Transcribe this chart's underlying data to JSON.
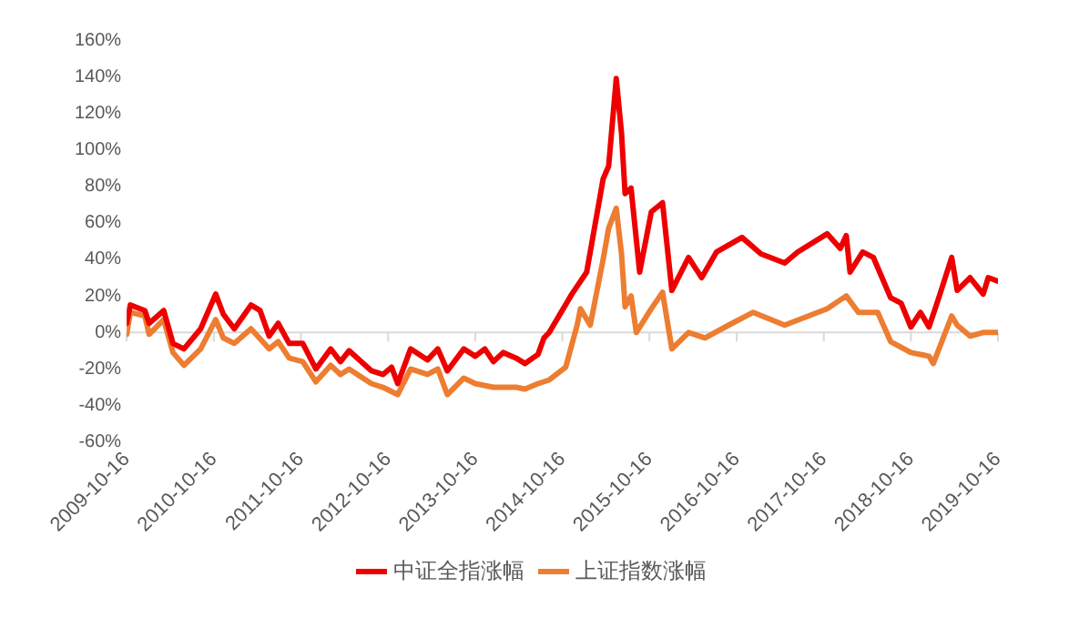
{
  "chart_data": {
    "type": "line",
    "xlim": [
      "2009-10-16",
      "2019-10-16"
    ],
    "xticks": [
      "2009-10-16",
      "2010-10-16",
      "2011-10-16",
      "2012-10-16",
      "2013-10-16",
      "2014-10-16",
      "2015-10-16",
      "2016-10-16",
      "2017-10-16",
      "2018-10-16",
      "2019-10-16"
    ],
    "ylim": [
      -60,
      160
    ],
    "yticks": [
      {
        "value": -60,
        "label": "-60%"
      },
      {
        "value": -40,
        "label": "-40%"
      },
      {
        "value": -20,
        "label": "-20%"
      },
      {
        "value": 0,
        "label": "0%"
      },
      {
        "value": 20,
        "label": "20%"
      },
      {
        "value": 40,
        "label": "40%"
      },
      {
        "value": 60,
        "label": "60%"
      },
      {
        "value": 80,
        "label": "80%"
      },
      {
        "value": 100,
        "label": "100%"
      },
      {
        "value": 120,
        "label": "120%"
      },
      {
        "value": 140,
        "label": "140%"
      },
      {
        "value": 160,
        "label": "160%"
      }
    ],
    "grid": false,
    "ref_lines": [
      {
        "axis": "y",
        "value": 0,
        "color": "#d9d9d9"
      }
    ],
    "legend": "bottom",
    "marker": "none",
    "line_style": "solid",
    "series": [
      {
        "name": "中证全指涨幅",
        "color": "#ee0000",
        "x": [
          "2009-10-16",
          "2009-10-31",
          "2009-12-31",
          "2010-01-18",
          "2010-03-20",
          "2010-04-28",
          "2010-06-13",
          "2010-08-22",
          "2010-10-24",
          "2010-11-25",
          "2011-01-10",
          "2011-03-21",
          "2011-04-28",
          "2011-06-05",
          "2011-07-13",
          "2011-08-28",
          "2011-10-24",
          "2011-12-18",
          "2012-02-18",
          "2012-03-30",
          "2012-05-05",
          "2012-08-07",
          "2012-09-24",
          "2012-10-30",
          "2012-11-25",
          "2013-01-18",
          "2013-03-30",
          "2013-05-12",
          "2013-06-21",
          "2013-08-29",
          "2013-10-16",
          "2013-11-25",
          "2013-12-31",
          "2014-02-10",
          "2014-04-05",
          "2014-05-12",
          "2014-07-06",
          "2014-07-31",
          "2014-08-22",
          "2014-11-25",
          "2015-01-26",
          "2015-04-05",
          "2015-04-28",
          "2015-05-30",
          "2015-06-21",
          "2015-07-06",
          "2015-07-31",
          "2015-09-05",
          "2015-10-24",
          "2015-12-10",
          "2016-01-18",
          "2016-03-28",
          "2016-05-22",
          "2016-07-23",
          "2016-11-07",
          "2017-01-26",
          "2017-05-05",
          "2017-06-28",
          "2017-10-30",
          "2017-12-24",
          "2018-01-18",
          "2018-02-03",
          "2018-03-28",
          "2018-05-12",
          "2018-07-23",
          "2018-09-05",
          "2018-10-16",
          "2018-11-25",
          "2018-12-31",
          "2019-02-10",
          "2019-04-05",
          "2019-04-28",
          "2019-06-21",
          "2019-08-15",
          "2019-09-05",
          "2019-10-16"
        ],
        "values": [
          5,
          15,
          12,
          5,
          12,
          -6,
          -9,
          2,
          21,
          10,
          2,
          15,
          12,
          -2,
          5,
          -6,
          -6,
          -20,
          -9,
          -16,
          -10,
          -21,
          -23,
          -19,
          -28,
          -9,
          -15,
          -9,
          -21,
          -9,
          -13,
          -9,
          -16,
          -11,
          -14,
          -17,
          -12,
          -3,
          0,
          21,
          33,
          84,
          91,
          139,
          109,
          76,
          79,
          33,
          66,
          71,
          23,
          41,
          30,
          44,
          52,
          43,
          38,
          44,
          54,
          46,
          53,
          33,
          44,
          41,
          19,
          16,
          3,
          11,
          3,
          19,
          41,
          23,
          30,
          21,
          30,
          28
        ]
      },
      {
        "name": "上证指数涨幅",
        "color": "#ed7d31",
        "x": [
          "2009-10-16",
          "2009-10-31",
          "2009-12-31",
          "2010-01-18",
          "2010-03-20",
          "2010-04-28",
          "2010-06-13",
          "2010-08-22",
          "2010-10-24",
          "2010-11-25",
          "2011-01-10",
          "2011-03-21",
          "2011-06-05",
          "2011-07-13",
          "2011-08-28",
          "2011-10-24",
          "2011-12-18",
          "2012-02-18",
          "2012-03-30",
          "2012-05-05",
          "2012-08-07",
          "2012-09-24",
          "2012-11-25",
          "2013-01-18",
          "2013-03-30",
          "2013-05-12",
          "2013-06-21",
          "2013-08-29",
          "2013-10-16",
          "2013-12-31",
          "2014-04-05",
          "2014-05-12",
          "2014-07-06",
          "2014-08-22",
          "2014-10-30",
          "2014-12-17",
          "2014-12-31",
          "2015-02-10",
          "2015-04-05",
          "2015-04-28",
          "2015-05-30",
          "2015-06-21",
          "2015-07-06",
          "2015-07-31",
          "2015-08-22",
          "2015-10-24",
          "2015-12-10",
          "2016-01-18",
          "2016-03-28",
          "2016-06-05",
          "2016-09-12",
          "2016-12-24",
          "2017-05-05",
          "2017-10-30",
          "2018-01-18",
          "2018-03-10",
          "2018-05-30",
          "2018-07-23",
          "2018-10-16",
          "2018-12-31",
          "2019-01-18",
          "2019-04-05",
          "2019-04-28",
          "2019-06-21",
          "2019-08-15",
          "2019-10-16"
        ],
        "values": [
          -1,
          11,
          9,
          -1,
          7,
          -11,
          -18,
          -9,
          7,
          -3,
          -6,
          2,
          -9,
          -5,
          -14,
          -16,
          -27,
          -18,
          -23,
          -20,
          -28,
          -30,
          -34,
          -20,
          -23,
          -20,
          -34,
          -25,
          -28,
          -30,
          -30,
          -31,
          -28,
          -26,
          -19,
          4,
          13,
          4,
          40,
          57,
          68,
          43,
          14,
          20,
          0,
          13,
          22,
          -9,
          0,
          -3,
          4,
          11,
          4,
          13,
          20,
          11,
          11,
          -5,
          -11,
          -13,
          -17,
          9,
          4,
          -2,
          0,
          0
        ]
      }
    ]
  }
}
